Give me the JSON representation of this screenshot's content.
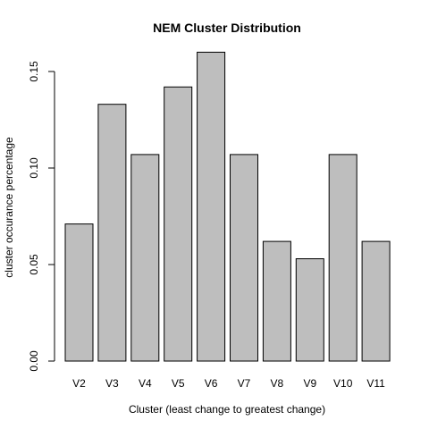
{
  "chart_data": {
    "type": "bar",
    "title": "NEM Cluster Distribution",
    "xlabel": "Cluster (least change to greatest change)",
    "ylabel": "cluster occurance percentage",
    "categories": [
      "V2",
      "V3",
      "V4",
      "V5",
      "V6",
      "V7",
      "V8",
      "V9",
      "V10",
      "V11"
    ],
    "values": [
      0.071,
      0.133,
      0.107,
      0.142,
      0.16,
      0.107,
      0.062,
      0.053,
      0.107,
      0.062
    ],
    "ylim": [
      0,
      0.16
    ],
    "yticks": [
      0.0,
      0.05,
      0.1,
      0.15
    ],
    "ytick_labels": [
      "0.00",
      "0.05",
      "0.10",
      "0.15"
    ],
    "grid": false,
    "legend": "none",
    "colors": {
      "bar_fill": "#bebebe",
      "bar_stroke": "#000000"
    }
  }
}
